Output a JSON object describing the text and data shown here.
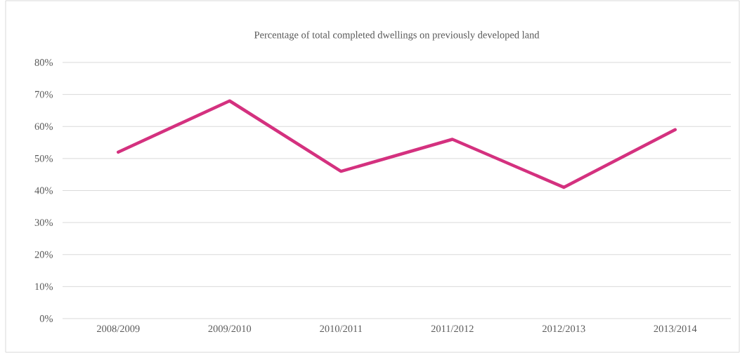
{
  "chart_data": {
    "type": "line",
    "title": "Percentage of total completed dwellings on previously developed land",
    "categories": [
      "2008/2009",
      "2009/2010",
      "2010/2011",
      "2011/2012",
      "2012/2013",
      "2013/2014"
    ],
    "series": [
      {
        "color": "#d4317f",
        "values": [
          52,
          68,
          46,
          56,
          41,
          59
        ]
      }
    ],
    "ylim": [
      0,
      80
    ],
    "yticks": [
      {
        "value": 0,
        "label": "0%"
      },
      {
        "value": 10,
        "label": "10%"
      },
      {
        "value": 20,
        "label": "20%"
      },
      {
        "value": 30,
        "label": "30%"
      },
      {
        "value": 40,
        "label": "40%"
      },
      {
        "value": 50,
        "label": "50%"
      },
      {
        "value": 60,
        "label": "60%"
      },
      {
        "value": 70,
        "label": "70%"
      },
      {
        "value": 80,
        "label": "80%"
      }
    ],
    "grid": "y"
  }
}
